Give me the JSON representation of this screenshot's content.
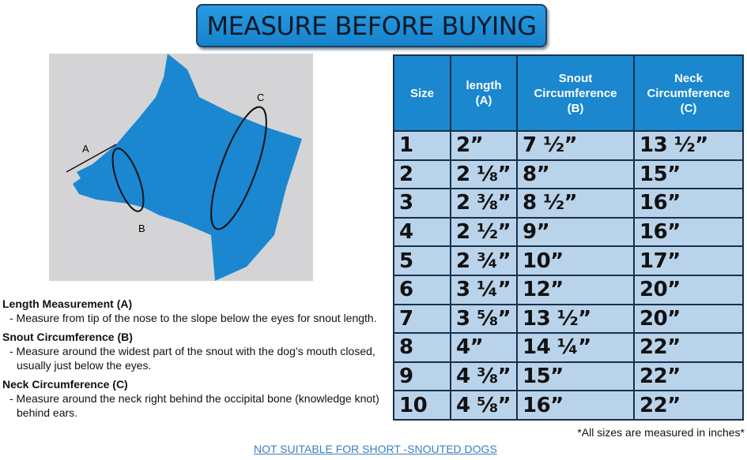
{
  "title": "MEASURE BEFORE BUYING",
  "diagram": {
    "labels": {
      "a": "A",
      "b": "B",
      "c": "C"
    },
    "colors": {
      "dog": "#1a87d0",
      "background": "#d4d4d6"
    }
  },
  "table": {
    "headers": [
      [
        "Size"
      ],
      [
        "length",
        "(A)"
      ],
      [
        "Snout",
        "Circumference",
        "(B)"
      ],
      [
        "Neck",
        "Circumference",
        "(C)"
      ]
    ],
    "rows": [
      [
        "1",
        "2”",
        "7 ½”",
        "13 ½”"
      ],
      [
        "2",
        "2 ⅛”",
        "8”",
        "15”"
      ],
      [
        "3",
        "2 ⅜”",
        "8 ½”",
        "16”"
      ],
      [
        "4",
        "2 ½”",
        "9”",
        "16”"
      ],
      [
        "5",
        "2 ¾”",
        "10”",
        "17”"
      ],
      [
        "6",
        "3 ¼”",
        "12”",
        "20”"
      ],
      [
        "7",
        "3 ⅝”",
        "13 ½”",
        "20”"
      ],
      [
        "8",
        "4”",
        "14 ¼”",
        "22”"
      ],
      [
        "9",
        "4 ⅜”",
        "15”",
        "22”"
      ],
      [
        "10",
        "4 ⅝”",
        "16”",
        "22”"
      ]
    ]
  },
  "notes": [
    {
      "heading": "Length Measurement (A)",
      "text": "- Measure from tip of the nose to the slope below the eyes for snout length."
    },
    {
      "heading": "Snout Circumference (B)",
      "text": "- Measure around the widest part of the snout with the dog’s mouth closed, usually just below the eyes."
    },
    {
      "heading": "Neck Circumference (C)",
      "text": "- Measure around the neck right behind the occipital bone (knowledge knot) behind ears."
    }
  ],
  "footnote": "*All sizes are measured in inches*",
  "warning_link": "NOT SUITABLE FOR SHORT -SNOUTED DOGS"
}
